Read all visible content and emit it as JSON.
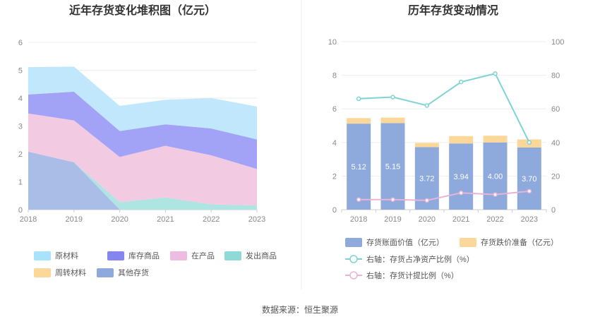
{
  "source": "数据来源：恒生聚源",
  "chart_data": [
    {
      "type": "area",
      "stacked": true,
      "title": "近年存货变化堆积图（亿元）",
      "x": [
        "2018",
        "2019",
        "2020",
        "2021",
        "2022",
        "2023"
      ],
      "ylim": [
        0,
        6
      ],
      "yticks": [
        "0",
        "1",
        "2",
        "3",
        "4",
        "5",
        "6"
      ],
      "grid": true,
      "legend_position": "bottom",
      "series": [
        {
          "name": "其他存货",
          "color": "#a9bde6",
          "values": [
            2.08,
            1.7,
            0.0,
            0.0,
            0.0,
            0.0
          ]
        },
        {
          "name": "周转材料",
          "color": "#fcd79a",
          "values": [
            0.0,
            0.0,
            0.0,
            0.0,
            0.0,
            0.0
          ]
        },
        {
          "name": "发出商品",
          "color": "#aee4e2",
          "values": [
            0.0,
            0.0,
            0.27,
            0.44,
            0.19,
            0.15
          ]
        },
        {
          "name": "在产品",
          "color": "#f2cbe2",
          "values": [
            1.37,
            1.5,
            1.62,
            1.85,
            1.76,
            1.31
          ]
        },
        {
          "name": "库存商品",
          "color": "#a2a2f6",
          "values": [
            0.68,
            1.03,
            0.93,
            0.77,
            0.96,
            1.06
          ]
        },
        {
          "name": "原材料",
          "color": "#c0e7fb",
          "values": [
            0.98,
            0.9,
            0.9,
            0.88,
            1.09,
            1.18
          ]
        }
      ],
      "legend": [
        {
          "name": "原材料",
          "color": "#a9e2fb"
        },
        {
          "name": "库存商品",
          "color": "#8585f0"
        },
        {
          "name": "在产品",
          "color": "#ecbde0"
        },
        {
          "name": "发出商品",
          "color": "#8fd9d6"
        },
        {
          "name": "周转材料",
          "color": "#fcd79a"
        },
        {
          "name": "其他存货",
          "color": "#8eaadd"
        }
      ]
    },
    {
      "type": "bar",
      "stacked": true,
      "title": "历年存货变动情况",
      "categories": [
        "2018",
        "2019",
        "2020",
        "2021",
        "2022",
        "2023"
      ],
      "ylim": [
        0,
        10
      ],
      "yticks": [
        "0",
        "2",
        "4",
        "6",
        "8",
        "10"
      ],
      "y2lim": [
        0,
        100
      ],
      "y2ticks": [
        "0",
        "20",
        "40",
        "60",
        "80",
        "100"
      ],
      "grid": true,
      "legend_position": "bottom",
      "series": [
        {
          "name": "存货账面价值（亿元）",
          "color": "#8eaadd",
          "values": [
            5.12,
            5.15,
            3.72,
            3.94,
            4.0,
            3.7
          ],
          "labels": [
            "5.12",
            "5.15",
            "3.72",
            "3.94",
            "4.00",
            "3.70"
          ]
        },
        {
          "name": "存货跌价准备（亿元）",
          "color": "#fcd79a",
          "values": [
            0.33,
            0.33,
            0.25,
            0.44,
            0.4,
            0.48
          ]
        }
      ],
      "lines": [
        {
          "name": "右轴：存货占净资产比例（%）",
          "color": "#7fd3d3",
          "axis": "right",
          "values": [
            66,
            67,
            62,
            76,
            81,
            40
          ]
        },
        {
          "name": "右轴：存货计提比例（%）",
          "color": "#e8b4d6",
          "axis": "right",
          "values": [
            6,
            6,
            5.5,
            10,
            9,
            11
          ]
        }
      ]
    }
  ]
}
